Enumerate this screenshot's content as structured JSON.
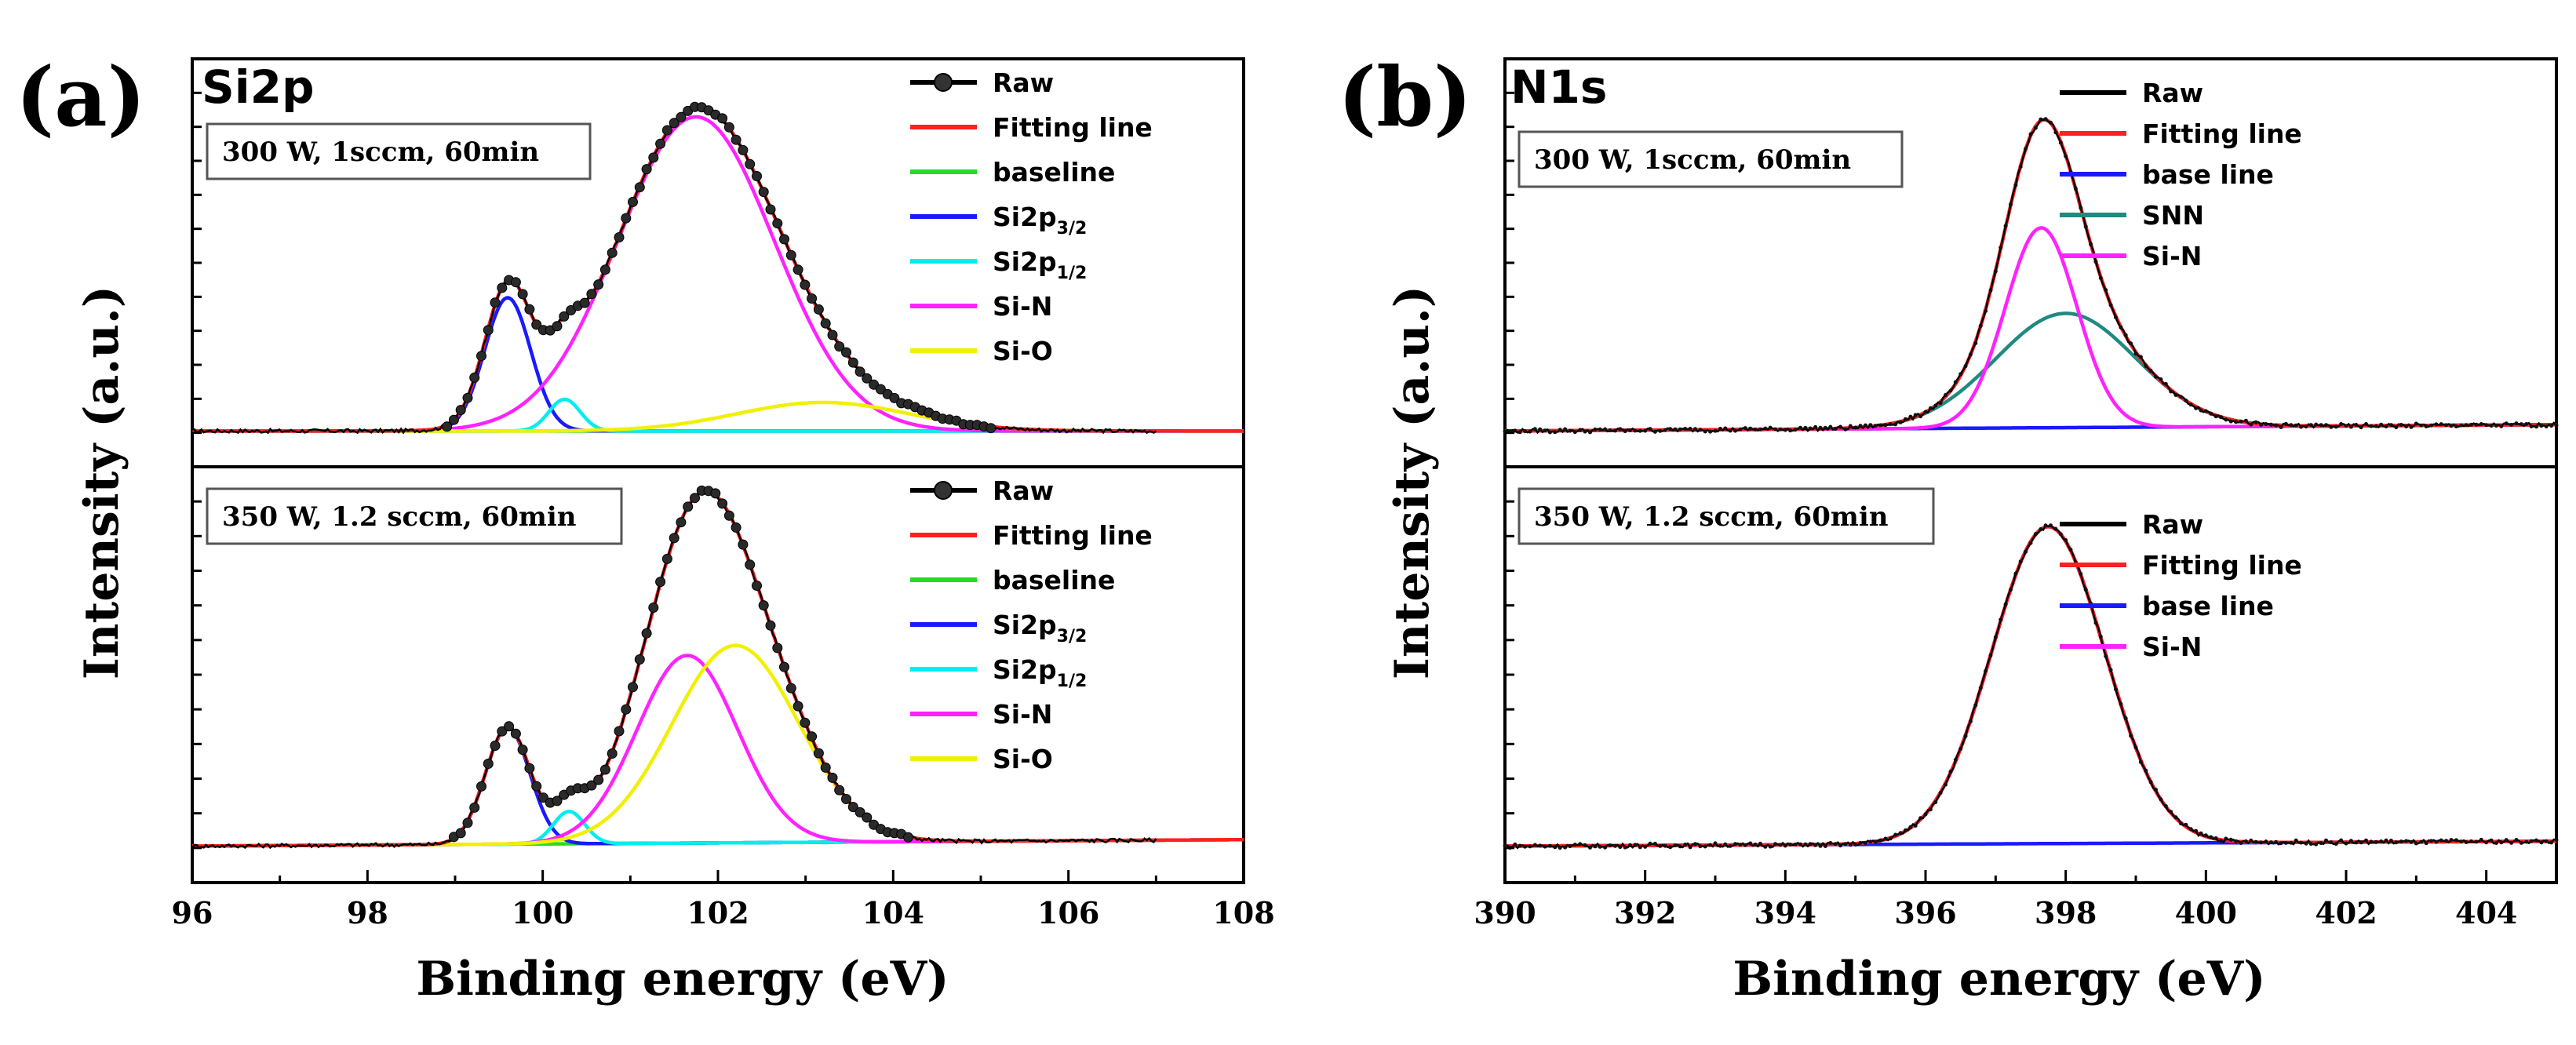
{
  "figure": {
    "panels": [
      {
        "id": "a",
        "letter": "(a)",
        "title": "Si2p",
        "xlabel": "Binding energy (eV)",
        "ylabel": "Intensity (a.u.)",
        "xticks": [
          "96",
          "98",
          "100",
          "102",
          "104",
          "106",
          "108"
        ],
        "xlim": [
          96,
          108
        ]
      },
      {
        "id": "b",
        "letter": "(b)",
        "title": "N1s",
        "xlabel": "Binding energy (eV)",
        "ylabel": "Intensity (a.u.)",
        "xticks": [
          "390",
          "392",
          "394",
          "396",
          "398",
          "400",
          "402",
          "404"
        ],
        "xlim": [
          390,
          405
        ]
      }
    ]
  },
  "chart_data": [
    {
      "type": "line",
      "panel": "a",
      "subplot": "top",
      "condition": "300 W, 1sccm, 60min",
      "xlim": [
        96,
        108
      ],
      "ylim": [
        0,
        1.08
      ],
      "raw_range": [
        96.0,
        107.0
      ],
      "raw_noise": 0.006,
      "baseline": {
        "x": [
          96,
          108
        ],
        "y": [
          0.01,
          0.01
        ]
      },
      "components": [
        {
          "name": "Si2p3/2",
          "center": 99.6,
          "height": 0.42,
          "width": 0.62,
          "offset": 0.01
        },
        {
          "name": "Si2p1/2",
          "center": 100.25,
          "height": 0.1,
          "width": 0.42,
          "offset": 0.01
        },
        {
          "name": "Si-N",
          "center": 101.75,
          "height": 0.99,
          "width": 2.1,
          "offset": 0.01
        },
        {
          "name": "Si-O",
          "center": 103.2,
          "height": 0.09,
          "width": 2.3,
          "offset": 0.01
        }
      ],
      "legend": [
        {
          "label": "Raw",
          "sub": "",
          "color": "#000000",
          "marker": "circle"
        },
        {
          "label": "Fitting line",
          "sub": "",
          "color": "#ff2020",
          "marker": ""
        },
        {
          "label": "baseline",
          "sub": "",
          "color": "#22dd22",
          "marker": ""
        },
        {
          "label": "Si2p",
          "sub": "3/2",
          "color": "#1a1aff",
          "marker": ""
        },
        {
          "label": "Si2p",
          "sub": "1/2",
          "color": "#00eeee",
          "marker": ""
        },
        {
          "label": "Si-N",
          "sub": "",
          "color": "#ff22ff",
          "marker": ""
        },
        {
          "label": "Si-O",
          "sub": "",
          "color": "#f0f000",
          "marker": ""
        }
      ]
    },
    {
      "type": "line",
      "panel": "a",
      "subplot": "bottom",
      "condition": "350 W, 1.2 sccm, 60min",
      "xlim": [
        96,
        108
      ],
      "ylim": [
        0,
        1.08
      ],
      "raw_range": [
        96.0,
        107.0
      ],
      "raw_noise": 0.006,
      "baseline": {
        "x": [
          96,
          108
        ],
        "y": [
          0.01,
          0.03
        ]
      },
      "components": [
        {
          "name": "Si2p3/2",
          "center": 99.6,
          "height": 0.36,
          "width": 0.6,
          "offset": 0.01
        },
        {
          "name": "Si2p1/2",
          "center": 100.3,
          "height": 0.1,
          "width": 0.42,
          "offset": 0.01
        },
        {
          "name": "Si-N",
          "center": 101.65,
          "height": 0.58,
          "width": 1.35,
          "offset": 0.01
        },
        {
          "name": "Si-O",
          "center": 102.2,
          "height": 0.61,
          "width": 1.7,
          "offset": 0.01
        }
      ],
      "legend": [
        {
          "label": "Raw",
          "sub": "",
          "color": "#000000",
          "marker": "circle"
        },
        {
          "label": "Fitting line",
          "sub": "",
          "color": "#ff2020",
          "marker": ""
        },
        {
          "label": "baseline",
          "sub": "",
          "color": "#22dd22",
          "marker": ""
        },
        {
          "label": "Si2p",
          "sub": "3/2",
          "color": "#1a1aff",
          "marker": ""
        },
        {
          "label": "Si2p",
          "sub": "1/2",
          "color": "#00eeee",
          "marker": ""
        },
        {
          "label": "Si-N",
          "sub": "",
          "color": "#ff22ff",
          "marker": ""
        },
        {
          "label": "Si-O",
          "sub": "",
          "color": "#f0f000",
          "marker": ""
        }
      ]
    },
    {
      "type": "line",
      "panel": "b",
      "subplot": "top",
      "condition": "300 W, 1sccm, 60min",
      "xlim": [
        390,
        405
      ],
      "ylim": [
        0,
        1.08
      ],
      "raw_range": [
        390.0,
        405.0
      ],
      "raw_noise": 0.006,
      "baseline": {
        "x": [
          390,
          405
        ],
        "y": [
          0.01,
          0.03
        ]
      },
      "components": [
        {
          "name": "SNN",
          "center": 398.0,
          "height": 0.36,
          "width": 2.35,
          "offset": 0.01
        },
        {
          "name": "Si-N",
          "center": 397.65,
          "height": 0.63,
          "width": 1.2,
          "offset": 0.01
        }
      ],
      "legend": [
        {
          "label": "Raw",
          "sub": "",
          "color": "#000000",
          "marker": ""
        },
        {
          "label": "Fitting line",
          "sub": "",
          "color": "#ff2020",
          "marker": ""
        },
        {
          "label": "base line",
          "sub": "",
          "color": "#1a1aff",
          "marker": ""
        },
        {
          "label": "SNN",
          "sub": "",
          "color": "#208a80",
          "marker": ""
        },
        {
          "label": "Si-N",
          "sub": "",
          "color": "#ff22ff",
          "marker": ""
        }
      ]
    },
    {
      "type": "line",
      "panel": "b",
      "subplot": "bottom",
      "condition": "350 W, 1.2 sccm, 60min",
      "xlim": [
        390,
        405
      ],
      "ylim": [
        0,
        1.08
      ],
      "raw_range": [
        390.0,
        405.0
      ],
      "raw_noise": 0.006,
      "baseline": {
        "x": [
          390,
          405
        ],
        "y": [
          0.01,
          0.025
        ]
      },
      "components": [
        {
          "name": "Si-N",
          "center": 397.75,
          "height": 0.98,
          "width": 1.9,
          "offset": 0.01
        }
      ],
      "legend": [
        {
          "label": "Raw",
          "sub": "",
          "color": "#000000",
          "marker": ""
        },
        {
          "label": "Fitting line",
          "sub": "",
          "color": "#ff2020",
          "marker": ""
        },
        {
          "label": "base line",
          "sub": "",
          "color": "#1a1aff",
          "marker": ""
        },
        {
          "label": "Si-N",
          "sub": "",
          "color": "#ff22ff",
          "marker": ""
        }
      ]
    }
  ]
}
